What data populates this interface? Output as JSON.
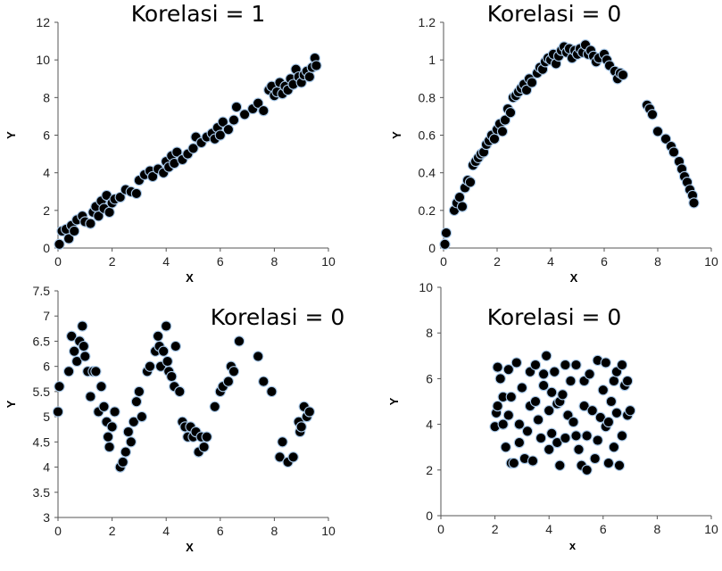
{
  "chart_data": [
    {
      "type": "scatter",
      "title": "Korelasi = 1",
      "xlabel": "X",
      "ylabel": "Y",
      "xlim": [
        0,
        10
      ],
      "ylim": [
        0,
        12
      ],
      "xticks": [
        "0",
        "2",
        "4",
        "6",
        "8",
        "10"
      ],
      "yticks": [
        "0",
        "2",
        "4",
        "6",
        "8",
        "10",
        "12"
      ],
      "points": [
        [
          0.05,
          0.2
        ],
        [
          0.15,
          0.9
        ],
        [
          0.3,
          1.0
        ],
        [
          0.4,
          0.5
        ],
        [
          0.5,
          1.2
        ],
        [
          0.6,
          0.9
        ],
        [
          0.7,
          1.5
        ],
        [
          0.9,
          1.7
        ],
        [
          1.0,
          1.4
        ],
        [
          1.2,
          1.3
        ],
        [
          1.3,
          1.9
        ],
        [
          1.4,
          2.2
        ],
        [
          1.5,
          1.7
        ],
        [
          1.6,
          2.5
        ],
        [
          1.7,
          2.1
        ],
        [
          1.8,
          2.8
        ],
        [
          1.9,
          1.9
        ],
        [
          2.0,
          2.4
        ],
        [
          2.1,
          2.6
        ],
        [
          2.3,
          2.7
        ],
        [
          2.5,
          3.1
        ],
        [
          2.7,
          3.0
        ],
        [
          2.9,
          2.9
        ],
        [
          3.0,
          3.6
        ],
        [
          3.2,
          3.9
        ],
        [
          3.4,
          4.1
        ],
        [
          3.5,
          3.8
        ],
        [
          3.7,
          4.2
        ],
        [
          3.9,
          4.0
        ],
        [
          4.0,
          4.6
        ],
        [
          4.1,
          4.3
        ],
        [
          4.2,
          4.9
        ],
        [
          4.3,
          4.5
        ],
        [
          4.4,
          5.1
        ],
        [
          4.6,
          4.7
        ],
        [
          4.8,
          5.0
        ],
        [
          5.0,
          5.3
        ],
        [
          5.1,
          5.9
        ],
        [
          5.3,
          5.6
        ],
        [
          5.5,
          5.9
        ],
        [
          5.7,
          6.1
        ],
        [
          5.8,
          5.8
        ],
        [
          5.9,
          6.4
        ],
        [
          6.0,
          6.0
        ],
        [
          6.1,
          6.7
        ],
        [
          6.3,
          6.3
        ],
        [
          6.5,
          6.8
        ],
        [
          6.6,
          7.5
        ],
        [
          6.9,
          7.1
        ],
        [
          7.2,
          7.4
        ],
        [
          7.4,
          7.7
        ],
        [
          7.6,
          7.3
        ],
        [
          7.8,
          8.4
        ],
        [
          7.9,
          8.6
        ],
        [
          8.0,
          8.1
        ],
        [
          8.1,
          8.3
        ],
        [
          8.2,
          8.8
        ],
        [
          8.3,
          8.2
        ],
        [
          8.4,
          8.6
        ],
        [
          8.5,
          8.4
        ],
        [
          8.6,
          9.0
        ],
        [
          8.7,
          8.7
        ],
        [
          8.8,
          9.5
        ],
        [
          8.9,
          9.1
        ],
        [
          9.0,
          8.8
        ],
        [
          9.1,
          9.2
        ],
        [
          9.2,
          9.4
        ],
        [
          9.3,
          9.1
        ],
        [
          9.4,
          9.6
        ],
        [
          9.5,
          10.1
        ],
        [
          9.55,
          9.7
        ]
      ]
    },
    {
      "type": "scatter",
      "title": "Korelasi = 0",
      "xlabel": "X",
      "ylabel": "Y",
      "xlim": [
        0,
        10
      ],
      "ylim": [
        0,
        1.2
      ],
      "xticks": [
        "0",
        "2",
        "4",
        "6",
        "8",
        "10"
      ],
      "yticks": [
        "0",
        "0.2",
        "0.4",
        "0.6",
        "0.8",
        "1",
        "1.2"
      ],
      "points": [
        [
          0.05,
          0.02
        ],
        [
          0.1,
          0.08
        ],
        [
          0.4,
          0.2
        ],
        [
          0.5,
          0.24
        ],
        [
          0.6,
          0.27
        ],
        [
          0.7,
          0.22
        ],
        [
          0.8,
          0.32
        ],
        [
          0.9,
          0.36
        ],
        [
          1.0,
          0.35
        ],
        [
          1.1,
          0.44
        ],
        [
          1.2,
          0.46
        ],
        [
          1.3,
          0.48
        ],
        [
          1.4,
          0.5
        ],
        [
          1.5,
          0.51
        ],
        [
          1.6,
          0.55
        ],
        [
          1.7,
          0.57
        ],
        [
          1.8,
          0.6
        ],
        [
          1.9,
          0.58
        ],
        [
          2.0,
          0.63
        ],
        [
          2.1,
          0.66
        ],
        [
          2.2,
          0.62
        ],
        [
          2.3,
          0.68
        ],
        [
          2.4,
          0.74
        ],
        [
          2.5,
          0.72
        ],
        [
          2.6,
          0.8
        ],
        [
          2.7,
          0.81
        ],
        [
          2.8,
          0.83
        ],
        [
          2.9,
          0.85
        ],
        [
          3.0,
          0.87
        ],
        [
          3.1,
          0.84
        ],
        [
          3.2,
          0.9
        ],
        [
          3.3,
          0.88
        ],
        [
          3.5,
          0.93
        ],
        [
          3.6,
          0.96
        ],
        [
          3.7,
          0.95
        ],
        [
          3.8,
          0.99
        ],
        [
          3.9,
          1.01
        ],
        [
          4.0,
          1.0
        ],
        [
          4.1,
          1.03
        ],
        [
          4.2,
          0.98
        ],
        [
          4.3,
          1.02
        ],
        [
          4.4,
          1.05
        ],
        [
          4.5,
          1.07
        ],
        [
          4.6,
          1.04
        ],
        [
          4.7,
          1.06
        ],
        [
          4.8,
          1.01
        ],
        [
          4.9,
          1.05
        ],
        [
          5.0,
          1.03
        ],
        [
          5.1,
          1.06
        ],
        [
          5.2,
          1.04
        ],
        [
          5.3,
          1.08
        ],
        [
          5.4,
          1.03
        ],
        [
          5.5,
          1.05
        ],
        [
          5.6,
          1.02
        ],
        [
          5.7,
          0.99
        ],
        [
          5.8,
          1.01
        ],
        [
          6.0,
          1.03
        ],
        [
          6.1,
          1.0
        ],
        [
          6.2,
          0.97
        ],
        [
          6.4,
          0.94
        ],
        [
          6.5,
          0.9
        ],
        [
          6.6,
          0.93
        ],
        [
          6.7,
          0.92
        ],
        [
          7.6,
          0.76
        ],
        [
          7.7,
          0.74
        ],
        [
          7.8,
          0.71
        ],
        [
          8.0,
          0.62
        ],
        [
          8.3,
          0.58
        ],
        [
          8.5,
          0.54
        ],
        [
          8.6,
          0.51
        ],
        [
          8.8,
          0.46
        ],
        [
          8.9,
          0.42
        ],
        [
          9.0,
          0.38
        ],
        [
          9.1,
          0.35
        ],
        [
          9.2,
          0.31
        ],
        [
          9.3,
          0.28
        ],
        [
          9.35,
          0.24
        ]
      ]
    },
    {
      "type": "scatter",
      "title": "Korelasi = 0",
      "xlabel": "X",
      "ylabel": "Y",
      "xlim": [
        0,
        10
      ],
      "ylim": [
        3,
        7.5
      ],
      "xticks": [
        "0",
        "2",
        "4",
        "6",
        "8",
        "10"
      ],
      "yticks": [
        "3",
        "3.5",
        "4",
        "4.5",
        "5",
        "5.5",
        "6",
        "6.5",
        "7",
        "7.5"
      ],
      "points": [
        [
          0.0,
          5.1
        ],
        [
          0.05,
          5.6
        ],
        [
          0.4,
          5.9
        ],
        [
          0.5,
          6.6
        ],
        [
          0.6,
          6.3
        ],
        [
          0.7,
          6.1
        ],
        [
          0.8,
          6.5
        ],
        [
          0.9,
          6.8
        ],
        [
          0.95,
          6.4
        ],
        [
          1.0,
          6.2
        ],
        [
          1.1,
          5.9
        ],
        [
          1.2,
          5.4
        ],
        [
          1.3,
          5.9
        ],
        [
          1.4,
          5.9
        ],
        [
          1.5,
          5.1
        ],
        [
          1.6,
          5.6
        ],
        [
          1.7,
          5.2
        ],
        [
          1.8,
          4.9
        ],
        [
          1.85,
          4.6
        ],
        [
          1.9,
          4.4
        ],
        [
          2.0,
          4.8
        ],
        [
          2.1,
          5.1
        ],
        [
          2.3,
          4.0
        ],
        [
          2.4,
          4.1
        ],
        [
          2.5,
          4.3
        ],
        [
          2.6,
          4.7
        ],
        [
          2.7,
          4.5
        ],
        [
          2.8,
          4.9
        ],
        [
          2.9,
          5.3
        ],
        [
          3.0,
          5.5
        ],
        [
          3.1,
          5.0
        ],
        [
          3.3,
          5.9
        ],
        [
          3.4,
          6.0
        ],
        [
          3.6,
          6.3
        ],
        [
          3.7,
          6.6
        ],
        [
          3.75,
          6.4
        ],
        [
          3.8,
          6.0
        ],
        [
          3.9,
          6.3
        ],
        [
          4.0,
          6.8
        ],
        [
          4.05,
          6.1
        ],
        [
          4.1,
          5.9
        ],
        [
          4.2,
          5.8
        ],
        [
          4.3,
          5.6
        ],
        [
          4.35,
          6.4
        ],
        [
          4.5,
          5.5
        ],
        [
          4.6,
          4.9
        ],
        [
          4.7,
          4.8
        ],
        [
          4.8,
          4.6
        ],
        [
          4.9,
          4.8
        ],
        [
          5.0,
          4.6
        ],
        [
          5.1,
          4.7
        ],
        [
          5.2,
          4.3
        ],
        [
          5.3,
          4.6
        ],
        [
          5.4,
          4.4
        ],
        [
          5.5,
          4.6
        ],
        [
          5.8,
          5.2
        ],
        [
          6.0,
          5.5
        ],
        [
          6.1,
          5.6
        ],
        [
          6.3,
          5.7
        ],
        [
          6.4,
          6.0
        ],
        [
          6.5,
          5.9
        ],
        [
          6.7,
          6.5
        ],
        [
          7.4,
          6.2
        ],
        [
          7.6,
          5.7
        ],
        [
          7.9,
          5.5
        ],
        [
          8.2,
          4.2
        ],
        [
          8.3,
          4.5
        ],
        [
          8.5,
          4.1
        ],
        [
          8.7,
          4.2
        ],
        [
          8.9,
          4.9
        ],
        [
          8.95,
          4.7
        ],
        [
          9.0,
          4.8
        ],
        [
          9.1,
          5.2
        ],
        [
          9.2,
          5.0
        ],
        [
          9.3,
          5.1
        ]
      ]
    },
    {
      "type": "scatter",
      "title": "Korelasi = 0",
      "xlabel": "x",
      "ylabel": "Y",
      "xlim": [
        0,
        10
      ],
      "ylim": [
        0,
        10
      ],
      "xticks": [
        "0",
        "2",
        "4",
        "6",
        "8",
        "10"
      ],
      "yticks": [
        "0",
        "2",
        "4",
        "6",
        "8",
        "10"
      ],
      "points": [
        [
          2.0,
          3.9
        ],
        [
          2.05,
          4.5
        ],
        [
          2.1,
          4.8
        ],
        [
          2.1,
          6.5
        ],
        [
          2.2,
          6.0
        ],
        [
          2.3,
          4.0
        ],
        [
          2.3,
          5.2
        ],
        [
          2.4,
          3.0
        ],
        [
          2.5,
          4.4
        ],
        [
          2.5,
          6.4
        ],
        [
          2.6,
          2.3
        ],
        [
          2.6,
          5.2
        ],
        [
          2.7,
          2.3
        ],
        [
          2.8,
          6.7
        ],
        [
          2.9,
          3.2
        ],
        [
          2.9,
          4.0
        ],
        [
          3.0,
          5.6
        ],
        [
          3.1,
          2.5
        ],
        [
          3.2,
          3.7
        ],
        [
          3.3,
          6.3
        ],
        [
          3.3,
          4.8
        ],
        [
          3.4,
          2.4
        ],
        [
          3.5,
          6.6
        ],
        [
          3.5,
          5.0
        ],
        [
          3.6,
          4.2
        ],
        [
          3.7,
          3.4
        ],
        [
          3.8,
          5.7
        ],
        [
          3.8,
          6.2
        ],
        [
          3.9,
          7.0
        ],
        [
          4.0,
          4.6
        ],
        [
          4.0,
          2.9
        ],
        [
          4.1,
          5.4
        ],
        [
          4.1,
          3.6
        ],
        [
          4.2,
          6.3
        ],
        [
          4.3,
          3.2
        ],
        [
          4.3,
          4.9
        ],
        [
          4.4,
          2.2
        ],
        [
          4.4,
          5.0
        ],
        [
          4.5,
          5.3
        ],
        [
          4.6,
          3.4
        ],
        [
          4.6,
          6.6
        ],
        [
          4.7,
          4.4
        ],
        [
          4.8,
          5.9
        ],
        [
          4.9,
          4.1
        ],
        [
          5.0,
          3.5
        ],
        [
          5.0,
          6.6
        ],
        [
          5.1,
          2.9
        ],
        [
          5.2,
          2.2
        ],
        [
          5.3,
          4.8
        ],
        [
          5.3,
          5.9
        ],
        [
          5.4,
          3.5
        ],
        [
          5.4,
          2.0
        ],
        [
          5.5,
          6.2
        ],
        [
          5.6,
          4.6
        ],
        [
          5.7,
          2.5
        ],
        [
          5.8,
          6.8
        ],
        [
          5.8,
          3.3
        ],
        [
          5.9,
          4.3
        ],
        [
          6.0,
          5.5
        ],
        [
          6.1,
          6.7
        ],
        [
          6.1,
          3.9
        ],
        [
          6.2,
          2.3
        ],
        [
          6.2,
          4.1
        ],
        [
          6.3,
          5.0
        ],
        [
          6.4,
          5.9
        ],
        [
          6.4,
          3.0
        ],
        [
          6.5,
          6.3
        ],
        [
          6.5,
          4.5
        ],
        [
          6.6,
          2.2
        ],
        [
          6.7,
          3.5
        ],
        [
          6.7,
          6.6
        ],
        [
          6.8,
          5.7
        ],
        [
          6.9,
          4.4
        ],
        [
          6.9,
          5.9
        ],
        [
          7.0,
          4.6
        ]
      ]
    }
  ]
}
